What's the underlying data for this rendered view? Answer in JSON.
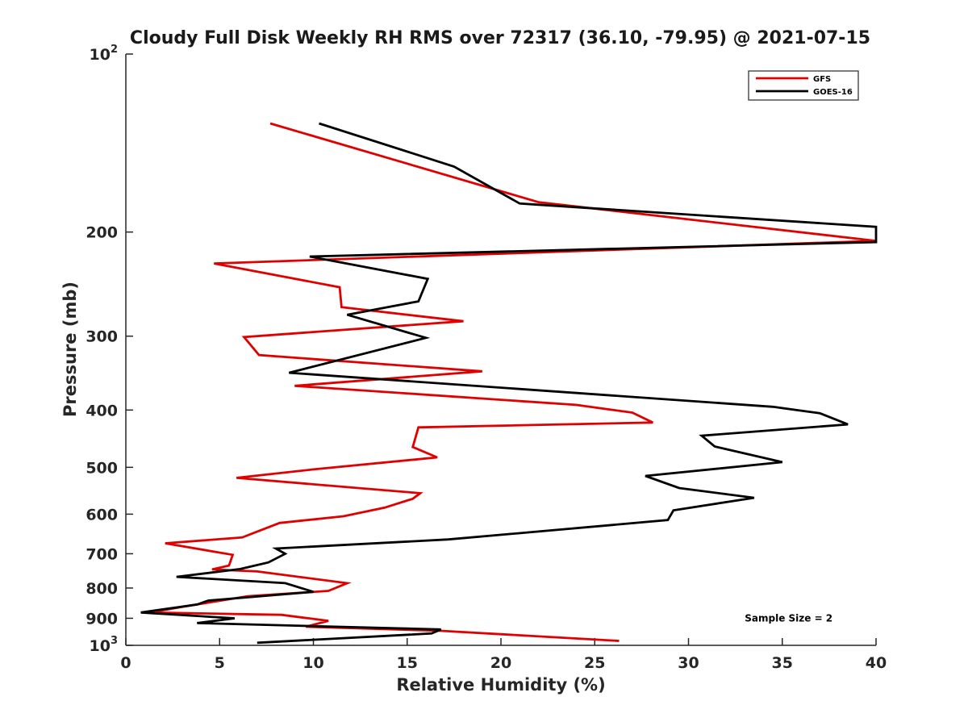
{
  "chart_data": {
    "type": "line",
    "title": "Cloudy Full Disk Weekly RH RMS over 72317 (36.10, -79.95) @ 2021-07-15",
    "xlabel": "Relative Humidity (%)",
    "ylabel": "Pressure (mb)",
    "xlim": [
      0,
      40
    ],
    "ylim": [
      100,
      1000
    ],
    "y_scale": "log",
    "y_reversed": true,
    "grid": false,
    "legend_position": "top-right",
    "x_ticks": [
      0,
      5,
      10,
      15,
      20,
      25,
      30,
      35,
      40
    ],
    "y_ticks": [
      {
        "value": 100,
        "label": "10",
        "sup": "2"
      },
      {
        "value": 200,
        "label": "200",
        "sup": ""
      },
      {
        "value": 300,
        "label": "300",
        "sup": ""
      },
      {
        "value": 400,
        "label": "400",
        "sup": ""
      },
      {
        "value": 500,
        "label": "500",
        "sup": ""
      },
      {
        "value": 600,
        "label": "600",
        "sup": ""
      },
      {
        "value": 700,
        "label": "700",
        "sup": ""
      },
      {
        "value": 800,
        "label": "800",
        "sup": ""
      },
      {
        "value": 900,
        "label": "900",
        "sup": ""
      },
      {
        "value": 1000,
        "label": "10",
        "sup": "3"
      }
    ],
    "series": [
      {
        "name": "GFS",
        "color": "#e00000",
        "points": [
          [
            7.7,
            131
          ],
          [
            22.0,
            178
          ],
          [
            40.0,
            207
          ],
          [
            4.7,
            226
          ],
          [
            11.4,
            248
          ],
          [
            11.5,
            268
          ],
          [
            18.0,
            283
          ],
          [
            6.3,
            301
          ],
          [
            7.1,
            323
          ],
          [
            19.0,
            344
          ],
          [
            9.0,
            364
          ],
          [
            24.0,
            392
          ],
          [
            27.0,
            404
          ],
          [
            28.1,
            420
          ],
          [
            15.6,
            428
          ],
          [
            15.3,
            462
          ],
          [
            16.6,
            481
          ],
          [
            10.0,
            504
          ],
          [
            5.9,
            521
          ],
          [
            15.7,
            553
          ],
          [
            15.3,
            565
          ],
          [
            13.8,
            585
          ],
          [
            11.6,
            605
          ],
          [
            8.2,
            621
          ],
          [
            6.2,
            657
          ],
          [
            2.1,
            672
          ],
          [
            5.7,
            703
          ],
          [
            5.5,
            733
          ],
          [
            4.6,
            744
          ],
          [
            7.0,
            750
          ],
          [
            11.8,
            785
          ],
          [
            10.8,
            809
          ],
          [
            6.5,
            826
          ],
          [
            2.9,
            862
          ],
          [
            1.3,
            880
          ],
          [
            8.3,
            888
          ],
          [
            10.8,
            909
          ],
          [
            9.6,
            930
          ],
          [
            16.8,
            945
          ],
          [
            26.3,
            983
          ]
        ]
      },
      {
        "name": "GOES-16",
        "color": "#000000",
        "points": [
          [
            10.3,
            131
          ],
          [
            17.5,
            155
          ],
          [
            21.0,
            179
          ],
          [
            40.0,
            196
          ],
          [
            40.0,
            208
          ],
          [
            9.8,
            220
          ],
          [
            16.1,
            240
          ],
          [
            15.6,
            262
          ],
          [
            11.8,
            276
          ],
          [
            16.0,
            302
          ],
          [
            8.7,
            346
          ],
          [
            34.5,
            395
          ],
          [
            37.0,
            405
          ],
          [
            38.5,
            423
          ],
          [
            30.7,
            442
          ],
          [
            31.4,
            461
          ],
          [
            35.0,
            490
          ],
          [
            27.7,
            517
          ],
          [
            29.5,
            542
          ],
          [
            33.5,
            563
          ],
          [
            29.2,
            591
          ],
          [
            28.9,
            614
          ],
          [
            17.2,
            662
          ],
          [
            8.0,
            686
          ],
          [
            8.5,
            700
          ],
          [
            7.6,
            724
          ],
          [
            6.1,
            743
          ],
          [
            2.7,
            766
          ],
          [
            8.5,
            785
          ],
          [
            10.0,
            812
          ],
          [
            4.4,
            840
          ],
          [
            3.8,
            853
          ],
          [
            0.8,
            880
          ],
          [
            5.8,
            900
          ],
          [
            3.8,
            917
          ],
          [
            16.8,
            940
          ],
          [
            16.3,
            955
          ],
          [
            7.0,
            990
          ]
        ]
      }
    ],
    "annotations": [
      {
        "text": "Sample Size = 2",
        "x": 33.0,
        "y": 900
      }
    ]
  }
}
